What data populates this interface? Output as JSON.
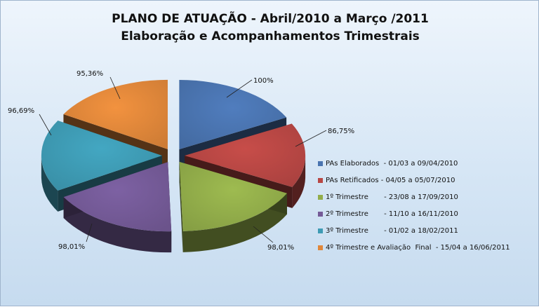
{
  "chart_data": {
    "type": "pie",
    "title": "PLANO DE ATUAÇÃO - Abril/2010 a Março /2011",
    "subtitle": "Elaboração e Acompanhamentos  Trimestrais",
    "slices": [
      {
        "name": "PAs Elaborados  - 01/03 a 09/04/2010",
        "value": 100,
        "label": "100%",
        "color": "#4a74b0"
      },
      {
        "name": "PAs Retificados - 04/05 a 05/07/2010",
        "value": 86.75,
        "label": "86,75%",
        "color": "#b84744"
      },
      {
        "name": "1º Trimestre       - 23/08 a 17/09/2010",
        "value": 98.01,
        "label": "98,01%",
        "color": "#92ad4a"
      },
      {
        "name": "2º Trimestre       - 11/10 a 16/11/2010",
        "value": 98.01,
        "label": "98,01%",
        "color": "#745a97"
      },
      {
        "name": "3º Trimestre       - 01/02 a 18/02/2011",
        "value": 96.69,
        "label": "96,69%",
        "color": "#3e9bb4"
      },
      {
        "name": "4º Trimestre e Avaliação  Final  - 15/04 a 16/06/2011",
        "value": 95.36,
        "label": "95,36%",
        "color": "#e0873a"
      }
    ],
    "legend_position": "right"
  }
}
